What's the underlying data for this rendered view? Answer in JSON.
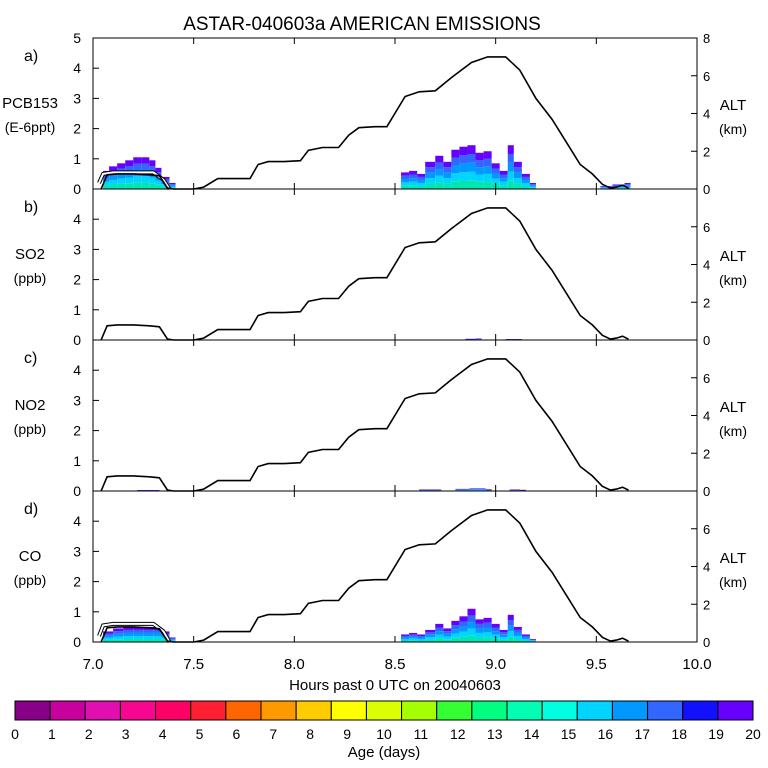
{
  "chart_data": {
    "type": "area",
    "title": "ASTAR-040603a AMERICAN EMISSIONS",
    "xlabel": "Hours past 0 UTC on 20040603",
    "xlim": [
      7.0,
      10.0
    ],
    "x_ticks": [
      "7.0",
      "7.5",
      "8.0",
      "8.5",
      "9.0",
      "9.5",
      "10.0"
    ],
    "right_axis": {
      "label": "ALT",
      "unit": "(km)",
      "ylim": [
        0,
        8
      ]
    },
    "panels": [
      {
        "letter": "a)",
        "label": "PCB153",
        "unit": "(E-6ppt)",
        "ylim": [
          0,
          5
        ],
        "left_ticks": [
          "0",
          "1",
          "2",
          "3",
          "4",
          "5"
        ],
        "right_ticks": [
          "0",
          "2",
          "4",
          "6",
          "8"
        ],
        "profile": [
          [
            7.03,
            0.2
          ],
          [
            7.05,
            0.5
          ],
          [
            7.1,
            0.55
          ],
          [
            7.15,
            0.55
          ],
          [
            7.2,
            0.55
          ],
          [
            7.25,
            0.55
          ],
          [
            7.3,
            0.55
          ],
          [
            7.35,
            0.3
          ],
          [
            7.38,
            0.0
          ]
        ],
        "blobs": [
          {
            "x0": 7.05,
            "x1": 7.38,
            "levels": [
              [
                7.05,
                0.6
              ],
              [
                7.08,
                0.75
              ],
              [
                7.12,
                0.85
              ],
              [
                7.16,
                0.95
              ],
              [
                7.2,
                1.05
              ],
              [
                7.24,
                1.05
              ],
              [
                7.28,
                0.95
              ],
              [
                7.31,
                0.7
              ],
              [
                7.34,
                0.4
              ],
              [
                7.38,
                0.2
              ]
            ]
          },
          {
            "x0": 8.53,
            "x1": 9.2,
            "levels": [
              [
                8.53,
                0.55
              ],
              [
                8.57,
                0.6
              ],
              [
                8.61,
                0.5
              ],
              [
                8.65,
                0.9
              ],
              [
                8.7,
                1.1
              ],
              [
                8.74,
                0.9
              ],
              [
                8.78,
                1.3
              ],
              [
                8.82,
                1.4
              ],
              [
                8.86,
                1.45
              ],
              [
                8.9,
                1.2
              ],
              [
                8.94,
                1.25
              ],
              [
                8.98,
                0.85
              ],
              [
                9.02,
                0.6
              ],
              [
                9.06,
                1.45
              ],
              [
                9.09,
                0.9
              ],
              [
                9.13,
                0.5
              ],
              [
                9.17,
                0.2
              ]
            ]
          },
          {
            "x0": 9.52,
            "x1": 9.65,
            "levels": [
              [
                9.52,
                0.1
              ],
              [
                9.58,
                0.15
              ],
              [
                9.64,
                0.2
              ]
            ]
          }
        ]
      },
      {
        "letter": "b)",
        "label": "SO2",
        "unit": "(ppb)",
        "ylim": [
          0,
          5
        ],
        "left_ticks": [
          "0",
          "1",
          "2",
          "3",
          "4"
        ],
        "right_ticks": [
          "0",
          "2",
          "4",
          "6"
        ],
        "profile": [],
        "blobs": [
          {
            "x0": 8.85,
            "x1": 8.9,
            "levels": [
              [
                8.85,
                0.04
              ],
              [
                8.9,
                0.05
              ]
            ]
          },
          {
            "x0": 9.05,
            "x1": 9.1,
            "levels": [
              [
                9.05,
                0.03
              ],
              [
                9.1,
                0.03
              ]
            ]
          }
        ]
      },
      {
        "letter": "c)",
        "label": "NO2",
        "unit": "(ppb)",
        "ylim": [
          0,
          5
        ],
        "left_ticks": [
          "0",
          "1",
          "2",
          "3",
          "4"
        ],
        "right_ticks": [
          "0",
          "2",
          "4",
          "6"
        ],
        "profile": [],
        "blobs": [
          {
            "x0": 7.22,
            "x1": 7.3,
            "levels": [
              [
                7.22,
                0.03
              ],
              [
                7.3,
                0.03
              ]
            ]
          },
          {
            "x0": 8.62,
            "x1": 8.7,
            "levels": [
              [
                8.62,
                0.05
              ],
              [
                8.7,
                0.05
              ]
            ]
          },
          {
            "x0": 8.8,
            "x1": 8.95,
            "levels": [
              [
                8.8,
                0.07
              ],
              [
                8.87,
                0.09
              ],
              [
                8.95,
                0.06
              ]
            ]
          },
          {
            "x0": 9.07,
            "x1": 9.12,
            "levels": [
              [
                9.07,
                0.05
              ],
              [
                9.12,
                0.04
              ]
            ]
          }
        ]
      },
      {
        "letter": "d)",
        "label": "CO",
        "unit": "(ppb)",
        "ylim": [
          0,
          5
        ],
        "left_ticks": [
          "0",
          "1",
          "2",
          "3",
          "4"
        ],
        "right_ticks": [
          "0",
          "2",
          "4",
          "6"
        ],
        "profile": [
          [
            7.03,
            0.2
          ],
          [
            7.05,
            0.55
          ],
          [
            7.1,
            0.6
          ],
          [
            7.15,
            0.6
          ],
          [
            7.2,
            0.6
          ],
          [
            7.25,
            0.6
          ],
          [
            7.3,
            0.6
          ],
          [
            7.35,
            0.35
          ],
          [
            7.38,
            0.0
          ]
        ],
        "blobs": [
          {
            "x0": 7.05,
            "x1": 7.4,
            "levels": [
              [
                7.05,
                0.35
              ],
              [
                7.1,
                0.45
              ],
              [
                7.15,
                0.5
              ],
              [
                7.2,
                0.5
              ],
              [
                7.25,
                0.5
              ],
              [
                7.3,
                0.5
              ],
              [
                7.34,
                0.35
              ],
              [
                7.38,
                0.15
              ]
            ]
          },
          {
            "x0": 8.53,
            "x1": 9.2,
            "levels": [
              [
                8.53,
                0.25
              ],
              [
                8.57,
                0.3
              ],
              [
                8.61,
                0.25
              ],
              [
                8.65,
                0.4
              ],
              [
                8.7,
                0.6
              ],
              [
                8.74,
                0.45
              ],
              [
                8.78,
                0.7
              ],
              [
                8.82,
                0.85
              ],
              [
                8.86,
                1.1
              ],
              [
                8.9,
                0.75
              ],
              [
                8.94,
                0.8
              ],
              [
                8.98,
                0.6
              ],
              [
                9.02,
                0.4
              ],
              [
                9.06,
                0.9
              ],
              [
                9.09,
                0.5
              ],
              [
                9.13,
                0.25
              ],
              [
                9.17,
                0.1
              ]
            ]
          }
        ]
      }
    ],
    "altitude_km": [
      [
        7.04,
        0.0
      ],
      [
        7.07,
        0.75
      ],
      [
        7.12,
        0.8
      ],
      [
        7.2,
        0.8
      ],
      [
        7.28,
        0.75
      ],
      [
        7.33,
        0.7
      ],
      [
        7.37,
        0.05
      ],
      [
        7.4,
        0.0
      ],
      [
        7.5,
        0.0
      ],
      [
        7.55,
        0.1
      ],
      [
        7.62,
        0.55
      ],
      [
        7.7,
        0.55
      ],
      [
        7.78,
        0.55
      ],
      [
        7.82,
        1.3
      ],
      [
        7.87,
        1.45
      ],
      [
        7.95,
        1.45
      ],
      [
        8.03,
        1.5
      ],
      [
        8.07,
        2.05
      ],
      [
        8.14,
        2.2
      ],
      [
        8.22,
        2.2
      ],
      [
        8.27,
        2.85
      ],
      [
        8.32,
        3.25
      ],
      [
        8.4,
        3.3
      ],
      [
        8.46,
        3.3
      ],
      [
        8.55,
        4.9
      ],
      [
        8.62,
        5.15
      ],
      [
        8.7,
        5.2
      ],
      [
        8.78,
        5.9
      ],
      [
        8.88,
        6.7
      ],
      [
        8.96,
        7.0
      ],
      [
        9.05,
        7.0
      ],
      [
        9.12,
        6.3
      ],
      [
        9.2,
        4.8
      ],
      [
        9.28,
        3.7
      ],
      [
        9.35,
        2.5
      ],
      [
        9.42,
        1.3
      ],
      [
        9.48,
        0.8
      ],
      [
        9.53,
        0.25
      ],
      [
        9.57,
        0.05
      ],
      [
        9.6,
        0.1
      ],
      [
        9.63,
        0.2
      ],
      [
        9.66,
        0.05
      ]
    ],
    "colorbar": {
      "label": "Age (days)",
      "ticks": [
        "0",
        "1",
        "2",
        "3",
        "4",
        "5",
        "6",
        "7",
        "8",
        "9",
        "10",
        "11",
        "12",
        "13",
        "14",
        "15",
        "16",
        "17",
        "18",
        "19",
        "20"
      ],
      "colors": [
        "#870087",
        "#c8009e",
        "#e20fb0",
        "#f7068f",
        "#ff0066",
        "#ff1f33",
        "#ff6600",
        "#ff9900",
        "#ffcc00",
        "#ffff00",
        "#d9ff00",
        "#a6ff00",
        "#33ff33",
        "#00ff80",
        "#00ffb2",
        "#00ffe0",
        "#00d4ff",
        "#0099ff",
        "#3366ff",
        "#1111ff",
        "#6600ff"
      ]
    }
  }
}
